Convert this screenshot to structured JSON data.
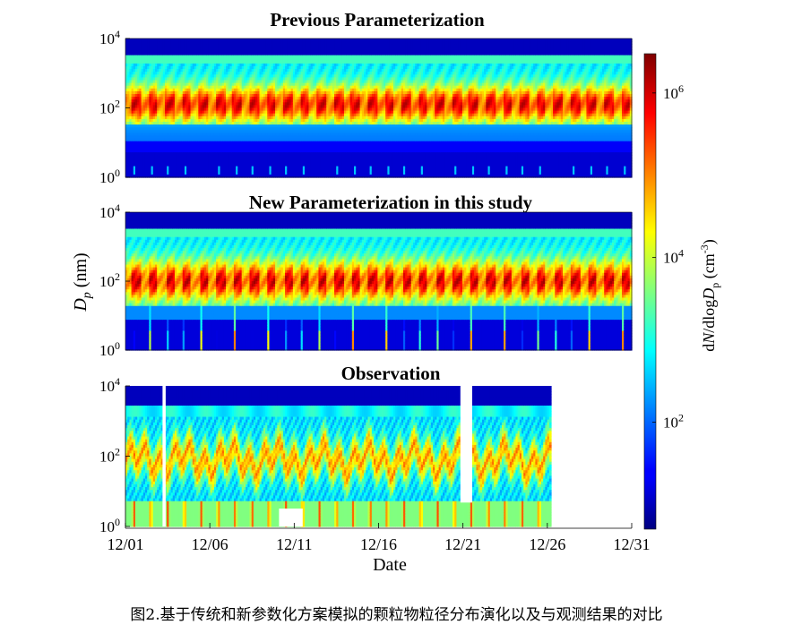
{
  "chart_data": {
    "type": "heatmap",
    "colormap": "jet",
    "panels": [
      {
        "title": "Previous Parameterization",
        "y_scale": "log",
        "y_ticks": [
          1,
          100,
          10000
        ],
        "pattern": "previous",
        "data_gaps": []
      },
      {
        "title": "New Parameterization in this study",
        "y_scale": "log",
        "y_ticks": [
          1,
          100,
          10000
        ],
        "pattern": "new",
        "data_gaps": []
      },
      {
        "title": "Observation",
        "y_scale": "log",
        "y_ticks": [
          1,
          100,
          10000
        ],
        "pattern": "observation",
        "data_gaps": [
          "12/03",
          "12/21"
        ],
        "data_end": "12/27"
      }
    ],
    "xlabel": "Date",
    "ylabel": "Dp (nm)",
    "x_ticks": [
      "12/01",
      "12/06",
      "12/11",
      "12/16",
      "12/21",
      "12/26",
      "12/31"
    ],
    "xlim": [
      "12/01",
      "12/31"
    ],
    "ylim": [
      1,
      10000
    ],
    "colorbar": {
      "label": "dN/dlogDp (cm-3)",
      "scale": "log",
      "ticks": [
        100,
        10000,
        1000000
      ],
      "range": [
        5,
        3000000
      ]
    }
  },
  "caption": "图2.基于传统和新参数化方案模拟的颗粒物粒径分布演化以及与观测结果的对比"
}
